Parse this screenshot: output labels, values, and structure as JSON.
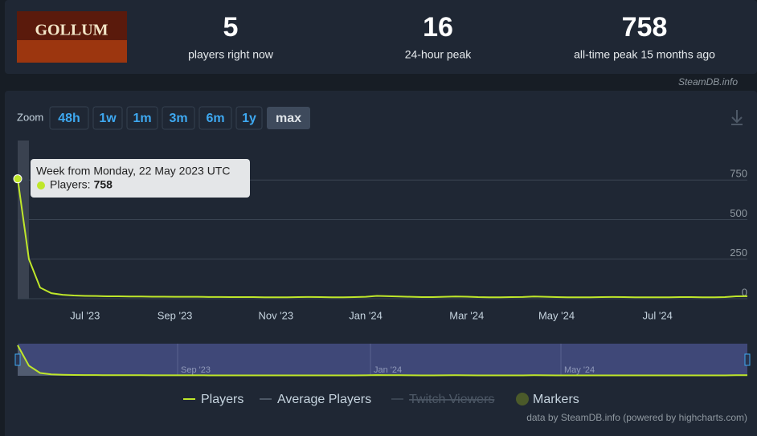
{
  "header": {
    "logo_text": "GOLLUM",
    "stats": [
      {
        "value": 5,
        "label": "players right now"
      },
      {
        "value": 16,
        "label": "24-hour peak"
      },
      {
        "value": 758,
        "label": "all-time peak 15 months ago"
      }
    ],
    "source": "SteamDB.info"
  },
  "zoom": {
    "label": "Zoom",
    "buttons": [
      "48h",
      "1w",
      "1m",
      "3m",
      "6m",
      "1y",
      "max"
    ],
    "active": "max"
  },
  "chart_data": {
    "type": "line",
    "categories": [
      null,
      null,
      null,
      null,
      null,
      null,
      "Jul '23",
      null,
      null,
      null,
      null,
      null,
      null,
      null,
      "Sep '23",
      null,
      null,
      null,
      null,
      null,
      null,
      null,
      null,
      "Nov '23",
      null,
      null,
      null,
      null,
      null,
      null,
      null,
      "Jan '24",
      null,
      null,
      null,
      null,
      null,
      null,
      null,
      null,
      "Mar '24",
      null,
      null,
      null,
      null,
      null,
      null,
      null,
      "May '24",
      null,
      null,
      null,
      null,
      null,
      null,
      null,
      null,
      "Jul '24",
      null,
      null,
      null,
      null,
      null,
      null,
      null,
      null
    ],
    "series": [
      {
        "name": "Players",
        "color": "#bfe72a",
        "values": [
          758,
          250,
          70,
          35,
          25,
          20,
          18,
          17,
          15,
          15,
          14,
          14,
          13,
          13,
          12,
          12,
          12,
          11,
          11,
          10,
          10,
          10,
          9,
          9,
          9,
          10,
          11,
          10,
          9,
          9,
          10,
          12,
          18,
          16,
          14,
          12,
          10,
          10,
          12,
          14,
          13,
          10,
          9,
          9,
          10,
          11,
          14,
          12,
          10,
          9,
          9,
          9,
          10,
          11,
          10,
          9,
          9,
          9,
          9,
          10,
          10,
          9,
          9,
          10,
          15,
          16
        ]
      }
    ],
    "hidden_legend": [
      "Average Players",
      "Twitch Viewers",
      "Markers"
    ],
    "ylim": [
      0,
      1000
    ],
    "yticks": [
      0,
      250,
      500,
      750
    ],
    "grid": true,
    "tooltip": {
      "title": "Week from Monday, 22 May 2023 UTC",
      "label": "Players:"
    },
    "navigator_labels": [
      "Sep '23",
      "Jan '24",
      "May '24"
    ],
    "credits": "data by SteamDB.info (powered by highcharts.com)"
  }
}
